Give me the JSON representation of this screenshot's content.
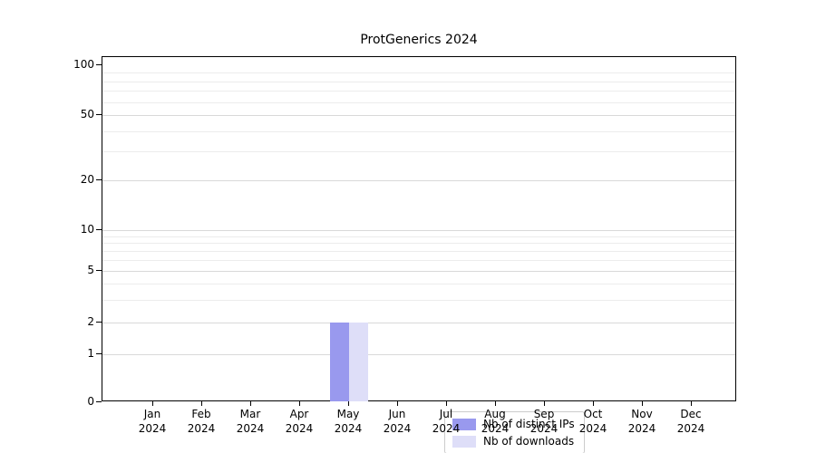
{
  "title": "ProtGenerics 2024",
  "chart_data": {
    "type": "bar",
    "title": "ProtGenerics 2024",
    "categories": [
      "Jan 2024",
      "Feb 2024",
      "Mar 2024",
      "Apr 2024",
      "May 2024",
      "Jun 2024",
      "Jul 2024",
      "Aug 2024",
      "Sep 2024",
      "Oct 2024",
      "Nov 2024",
      "Dec 2024"
    ],
    "series": [
      {
        "name": "Nb of distinct IPs",
        "color": "#9999ee",
        "values": [
          0,
          0,
          0,
          0,
          2,
          0,
          0,
          0,
          0,
          0,
          0,
          0
        ]
      },
      {
        "name": "Nb of downloads",
        "color": "#dedef8",
        "values": [
          0,
          0,
          0,
          0,
          2,
          0,
          0,
          0,
          0,
          0,
          0,
          0
        ]
      }
    ],
    "y_ticks": [
      0,
      1,
      2,
      5,
      10,
      20,
      50,
      100
    ],
    "y_minor_ticks": [
      3,
      4,
      6,
      7,
      8,
      9,
      30,
      40,
      60,
      70,
      80,
      90
    ],
    "y_scale": "log",
    "ylim": [
      0,
      100
    ],
    "xlabel": "",
    "ylabel": "",
    "grid": "horizontal",
    "legend": {
      "position": "inside-bottom-center",
      "entries": [
        "Nb of distinct IPs",
        "Nb of downloads"
      ]
    }
  }
}
